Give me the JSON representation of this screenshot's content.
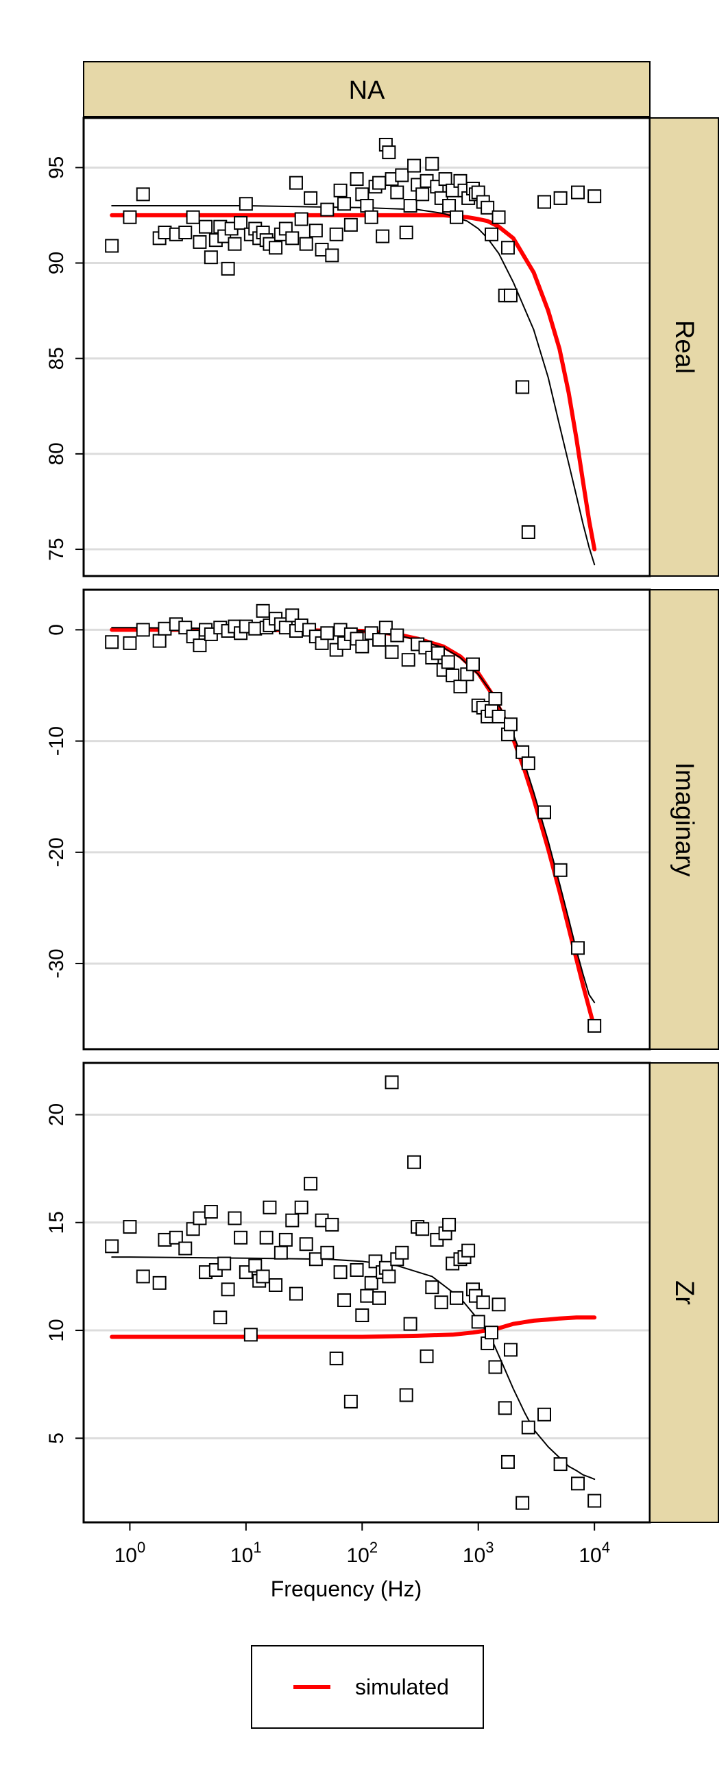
{
  "chart_data": {
    "type": "scatter",
    "title": "NA",
    "xlabel": "Frequency (Hz)",
    "x_scale": "log10",
    "xlim": [
      0.4,
      30000
    ],
    "x_ticks": [
      1,
      10,
      100,
      1000,
      10000
    ],
    "x_tick_labels": [
      {
        "base": "10",
        "exp": "0"
      },
      {
        "base": "10",
        "exp": "1"
      },
      {
        "base": "10",
        "exp": "2"
      },
      {
        "base": "10",
        "exp": "3"
      },
      {
        "base": "10",
        "exp": "4"
      }
    ],
    "grid": "horizontal",
    "legend": {
      "position": "bottom",
      "entries": [
        {
          "label": "simulated",
          "color": "#ff0000",
          "style": "line"
        }
      ]
    },
    "colors": {
      "simulated": "#ff0000",
      "fit": "#000000",
      "points": "#000000",
      "strip": "#e6d8a8"
    },
    "panels": [
      {
        "label": "Real",
        "ylim": [
          73.6,
          97.6
        ],
        "y_ticks": [
          75,
          80,
          85,
          90,
          95
        ],
        "y_tick_labels": [
          "75",
          "80",
          "85",
          "90",
          "95"
        ],
        "series": [
          {
            "name": "simulated",
            "style": "red-line",
            "x": [
              0.7,
              1,
              10,
              100,
              500,
              800,
              1000,
              1200,
              1500,
              2000,
              3000,
              4000,
              5000,
              6000,
              7000,
              8000,
              9000,
              10000
            ],
            "y": [
              92.5,
              92.5,
              92.5,
              92.5,
              92.5,
              92.4,
              92.3,
              92.2,
              91.9,
              91.3,
              89.5,
              87.5,
              85.5,
              83.2,
              80.8,
              78.5,
              76.5,
              75.0
            ]
          },
          {
            "style": "black-line",
            "x": [
              0.7,
              1,
              10,
              100,
              300,
              500,
              800,
              1000,
              1200,
              1500,
              2000,
              3000,
              4000,
              5000,
              6000,
              7000,
              8000,
              9000,
              10000
            ],
            "y": [
              93.0,
              93.0,
              93.0,
              92.9,
              92.8,
              92.6,
              92.2,
              91.8,
              91.3,
              90.5,
              89.0,
              86.5,
              84.0,
              81.5,
              79.5,
              77.8,
              76.3,
              75.1,
              74.2
            ]
          },
          {
            "style": "points",
            "x": [
              0.7,
              1.0,
              1.3,
              1.8,
              2.0,
              2.5,
              3.0,
              3.5,
              4.0,
              4.5,
              5.0,
              5.5,
              6.0,
              6.5,
              7.0,
              7.5,
              8.0,
              9.0,
              10.0,
              11.0,
              12.0,
              13.0,
              14.0,
              15.0,
              16.0,
              18.0,
              20.0,
              22.0,
              25.0,
              27.0,
              30.0,
              33.0,
              36.0,
              40.0,
              45.0,
              50.0,
              55.0,
              60.0,
              65.0,
              70.0,
              80.0,
              90.0,
              100.0,
              110.0,
              120.0,
              130.0,
              140.0,
              150.0,
              160.0,
              170.0,
              180.0,
              200.0,
              220.0,
              240.0,
              260.0,
              280.0,
              300.0,
              330.0,
              360.0,
              400.0,
              440.0,
              480.0,
              520.0,
              560.0,
              600.0,
              650.0,
              700.0,
              760.0,
              820.0,
              900.0,
              950.0,
              1000.0,
              1100.0,
              1200.0,
              1300.0,
              1500.0,
              1700.0,
              1800.0,
              1900.0,
              2400.0,
              2700.0,
              3700.0,
              5100.0,
              7200.0,
              10000.0
            ],
            "y": [
              90.9,
              92.4,
              93.6,
              91.3,
              91.6,
              91.5,
              91.6,
              92.4,
              91.1,
              91.9,
              90.3,
              91.2,
              91.9,
              91.4,
              89.7,
              91.8,
              91.0,
              92.1,
              93.1,
              91.5,
              91.8,
              91.3,
              91.6,
              91.2,
              91.0,
              90.8,
              91.5,
              91.8,
              91.3,
              94.2,
              92.3,
              91.0,
              93.4,
              91.7,
              90.7,
              92.8,
              90.4,
              91.5,
              93.8,
              93.1,
              92.0,
              94.4,
              93.6,
              93.0,
              92.4,
              94.0,
              94.2,
              91.4,
              96.2,
              95.8,
              94.4,
              93.7,
              94.6,
              91.6,
              93.0,
              95.1,
              94.1,
              93.6,
              94.3,
              95.2,
              94.0,
              93.4,
              94.4,
              93.0,
              93.8,
              92.4,
              94.3,
              93.8,
              93.4,
              93.9,
              93.6,
              93.7,
              93.2,
              92.9,
              91.5,
              92.4,
              88.3,
              90.8,
              88.3,
              83.5,
              75.9,
              93.2,
              93.4,
              93.7,
              93.5
            ]
          }
        ]
      },
      {
        "label": "Imaginary",
        "ylim": [
          -37.7,
          3.6
        ],
        "y_ticks": [
          -30,
          -20,
          -10,
          0
        ],
        "y_tick_labels": [
          "-30",
          "-20",
          "-10",
          "0"
        ],
        "series": [
          {
            "name": "simulated",
            "style": "red-line",
            "x": [
              0.7,
              1,
              10,
              100,
              200,
              300,
              500,
              700,
              1000,
              1300,
              1600,
              2000,
              2500,
              3000,
              4000,
              5000,
              6000,
              7000,
              8000,
              9000,
              10000
            ],
            "y": [
              0.0,
              0.0,
              0.0,
              -0.1,
              -0.4,
              -0.8,
              -1.5,
              -2.4,
              -3.9,
              -5.7,
              -7.5,
              -9.8,
              -12.6,
              -15.2,
              -19.7,
              -23.5,
              -26.8,
              -29.6,
              -32.0,
              -34.0,
              -35.8
            ]
          },
          {
            "style": "black-line",
            "x": [
              0.7,
              1,
              10,
              100,
              200,
              300,
              500,
              700,
              1000,
              1300,
              1600,
              2000,
              2500,
              3000,
              4000,
              5000,
              6000,
              7000,
              8000,
              9000,
              10000
            ],
            "y": [
              0.2,
              0.2,
              0.1,
              -0.1,
              -0.5,
              -0.9,
              -1.6,
              -2.5,
              -4.0,
              -5.6,
              -7.3,
              -9.4,
              -12.0,
              -14.6,
              -19.0,
              -22.8,
              -26.0,
              -28.8,
              -31.0,
              -32.8,
              -33.5
            ]
          },
          {
            "style": "points",
            "x": [
              0.7,
              1.0,
              1.3,
              1.8,
              2.0,
              2.5,
              3.0,
              3.5,
              4.0,
              4.5,
              5.0,
              6.0,
              7.0,
              8.0,
              9.0,
              10.0,
              12.0,
              14.0,
              15.0,
              16.0,
              18.0,
              20.0,
              22.0,
              25.0,
              27.0,
              30.0,
              35.0,
              40.0,
              45.0,
              50.0,
              60.0,
              65.0,
              70.0,
              80.0,
              90.0,
              100.0,
              120.0,
              140.0,
              160.0,
              180.0,
              200.0,
              250.0,
              300.0,
              350.0,
              400.0,
              450.0,
              500.0,
              550.0,
              600.0,
              700.0,
              800.0,
              900.0,
              1000.0,
              1100.0,
              1200.0,
              1300.0,
              1400.0,
              1500.0,
              1800.0,
              1900.0,
              2400.0,
              2700.0,
              3700.0,
              5100.0,
              7200.0,
              10000.0
            ],
            "y": [
              -1.1,
              -1.2,
              0.0,
              -1.0,
              0.1,
              0.5,
              0.2,
              -0.6,
              -1.4,
              0.0,
              -0.4,
              0.2,
              -0.1,
              0.3,
              -0.3,
              0.3,
              0.1,
              1.7,
              0.2,
              0.4,
              1.0,
              0.5,
              0.2,
              1.3,
              -0.1,
              0.4,
              0.0,
              -0.6,
              -1.2,
              -0.3,
              -1.8,
              0.0,
              -1.2,
              -0.4,
              -0.8,
              -1.5,
              -0.3,
              -0.9,
              0.2,
              -2.0,
              -0.5,
              -2.7,
              -1.3,
              -1.6,
              -2.5,
              -2.1,
              -3.6,
              -2.9,
              -4.1,
              -5.1,
              -4.0,
              -3.1,
              -6.8,
              -7.0,
              -7.8,
              -7.3,
              -6.2,
              -7.8,
              -9.4,
              -8.5,
              -11.0,
              -12.0,
              -16.4,
              -21.6,
              -28.6,
              -35.6
            ]
          }
        ]
      },
      {
        "label": "Zr",
        "ylim": [
          1.1,
          22.4
        ],
        "y_ticks": [
          5,
          10,
          15,
          20
        ],
        "y_tick_labels": [
          "5",
          "10",
          "15",
          "20"
        ],
        "series": [
          {
            "name": "simulated",
            "style": "red-line",
            "x": [
              0.7,
              1,
              10,
              100,
              300,
              600,
              900,
              1200,
              1500,
              2000,
              3000,
              4000,
              5000,
              7000,
              10000
            ],
            "y": [
              9.7,
              9.7,
              9.7,
              9.7,
              9.75,
              9.8,
              9.9,
              10.0,
              10.1,
              10.3,
              10.45,
              10.5,
              10.55,
              10.6,
              10.6
            ]
          },
          {
            "style": "black-line",
            "x": [
              0.7,
              1,
              10,
              50,
              100,
              200,
              400,
              700,
              1000,
              1300,
              1600,
              2000,
              2500,
              3000,
              4000,
              5000,
              6000,
              7000,
              8000,
              9000,
              10000
            ],
            "y": [
              13.4,
              13.4,
              13.35,
              13.3,
              13.2,
              13.0,
              12.5,
              11.5,
              10.5,
              9.6,
              8.5,
              7.3,
              6.2,
              5.4,
              4.6,
              4.1,
              3.7,
              3.5,
              3.3,
              3.2,
              3.1
            ]
          },
          {
            "style": "points",
            "x": [
              0.7,
              1.0,
              1.3,
              1.8,
              2.0,
              2.5,
              3.0,
              3.5,
              4.0,
              4.5,
              5.0,
              5.5,
              6.0,
              6.5,
              7.0,
              8.0,
              9.0,
              10.0,
              11.0,
              12.0,
              13.0,
              14.0,
              15.0,
              16.0,
              18.0,
              20.0,
              22.0,
              25.0,
              27.0,
              30.0,
              33.0,
              36.0,
              40.0,
              45.0,
              50.0,
              55.0,
              60.0,
              65.0,
              70.0,
              80.0,
              90.0,
              100.0,
              110.0,
              120.0,
              130.0,
              140.0,
              150.0,
              160.0,
              170.0,
              180.0,
              200.0,
              220.0,
              240.0,
              260.0,
              280.0,
              300.0,
              330.0,
              360.0,
              400.0,
              440.0,
              480.0,
              520.0,
              560.0,
              600.0,
              650.0,
              700.0,
              760.0,
              820.0,
              900.0,
              950.0,
              1000.0,
              1100.0,
              1200.0,
              1300.0,
              1400.0,
              1500.0,
              1700.0,
              1800.0,
              1900.0,
              2400.0,
              2700.0,
              3700.0,
              5100.0,
              7200.0,
              10000.0
            ],
            "y": [
              13.9,
              14.8,
              12.5,
              12.2,
              14.2,
              14.3,
              13.8,
              14.7,
              15.2,
              12.7,
              15.5,
              12.8,
              10.6,
              13.1,
              11.9,
              15.2,
              14.3,
              12.7,
              9.8,
              13.0,
              12.3,
              12.5,
              14.3,
              15.7,
              12.1,
              13.6,
              14.2,
              15.1,
              11.7,
              15.7,
              14.0,
              16.8,
              13.3,
              15.1,
              13.6,
              14.9,
              8.7,
              12.7,
              11.4,
              6.7,
              12.8,
              10.7,
              11.6,
              12.2,
              13.2,
              11.5,
              12.7,
              12.9,
              12.5,
              21.5,
              13.3,
              13.6,
              7.0,
              10.3,
              17.8,
              14.8,
              14.7,
              8.8,
              12.0,
              14.2,
              11.3,
              14.5,
              14.9,
              13.1,
              11.5,
              13.3,
              13.4,
              13.7,
              11.9,
              11.6,
              10.4,
              11.3,
              9.4,
              9.9,
              8.3,
              11.2,
              6.4,
              3.9,
              9.1,
              2.0,
              5.5,
              6.1,
              3.8,
              2.9,
              2.1
            ]
          }
        ]
      }
    ]
  }
}
